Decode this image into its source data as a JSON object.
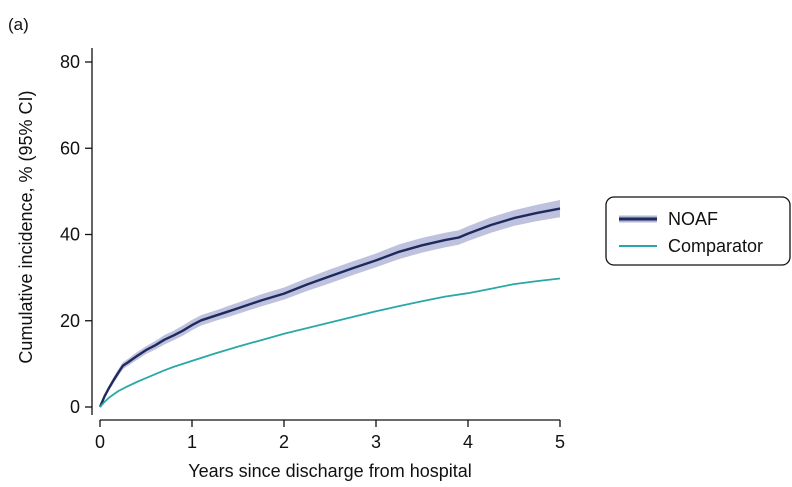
{
  "panel_label": "(a)",
  "chart_data": {
    "type": "line",
    "xlabel": "Years since discharge from hospital",
    "ylabel": "Cumulative incidence, % (95% CI)",
    "xlim": [
      0,
      5
    ],
    "ylim": [
      0,
      80
    ],
    "x_ticks": [
      "0",
      "1",
      "2",
      "3",
      "4",
      "5"
    ],
    "y_ticks": [
      "0",
      "20",
      "40",
      "60",
      "80"
    ],
    "legend_position": "right",
    "series": [
      {
        "name": "NOAF",
        "color": "#1f2a5c",
        "band_color": "#b3b7d9",
        "x": [
          0,
          0.05,
          0.1,
          0.15,
          0.2,
          0.25,
          0.3,
          0.4,
          0.5,
          0.6,
          0.7,
          0.8,
          0.9,
          1.0,
          1.1,
          1.2,
          1.3,
          1.4,
          1.5,
          1.75,
          2.0,
          2.25,
          2.5,
          2.75,
          3.0,
          3.25,
          3.5,
          3.75,
          3.9,
          4.0,
          4.25,
          4.5,
          4.75,
          5.0
        ],
        "y": [
          0,
          2.5,
          4.5,
          6.3,
          8.0,
          9.6,
          10.3,
          11.8,
          13.2,
          14.3,
          15.6,
          16.6,
          17.7,
          19.0,
          20.1,
          20.8,
          21.5,
          22.2,
          22.9,
          24.7,
          26.3,
          28.4,
          30.3,
          32.2,
          34.0,
          36.0,
          37.5,
          38.7,
          39.3,
          40.2,
          42.2,
          43.8,
          45.0,
          46.0
        ],
        "lower": [
          0,
          2.0,
          3.9,
          5.6,
          7.2,
          8.8,
          9.5,
          10.9,
          12.3,
          13.3,
          14.5,
          15.5,
          16.5,
          17.8,
          18.9,
          19.6,
          20.3,
          20.9,
          21.6,
          23.3,
          24.9,
          26.9,
          28.7,
          30.6,
          32.4,
          34.3,
          35.8,
          37.0,
          37.6,
          38.5,
          40.4,
          42.0,
          43.1,
          44.0
        ],
        "upper": [
          0,
          3.0,
          5.1,
          7.0,
          8.8,
          10.4,
          11.1,
          12.7,
          14.1,
          15.3,
          16.7,
          17.7,
          18.9,
          20.2,
          21.3,
          22.0,
          22.7,
          23.5,
          24.2,
          26.1,
          27.7,
          29.9,
          31.9,
          33.8,
          35.6,
          37.7,
          39.2,
          40.4,
          41.0,
          41.9,
          44.0,
          45.6,
          46.9,
          48.0
        ]
      },
      {
        "name": "Comparator",
        "color": "#2aa8a8",
        "x": [
          0,
          0.05,
          0.1,
          0.2,
          0.3,
          0.4,
          0.5,
          0.6,
          0.7,
          0.8,
          0.9,
          1.0,
          1.25,
          1.5,
          1.75,
          2.0,
          2.25,
          2.5,
          2.75,
          3.0,
          3.25,
          3.5,
          3.75,
          4.0,
          4.25,
          4.5,
          4.75,
          5.0
        ],
        "y": [
          0,
          1.2,
          2.2,
          3.7,
          4.8,
          5.8,
          6.7,
          7.6,
          8.5,
          9.3,
          10.0,
          10.7,
          12.4,
          14.0,
          15.5,
          17.0,
          18.3,
          19.6,
          20.9,
          22.2,
          23.4,
          24.5,
          25.6,
          26.4,
          27.4,
          28.5,
          29.2,
          29.8
        ]
      }
    ]
  }
}
